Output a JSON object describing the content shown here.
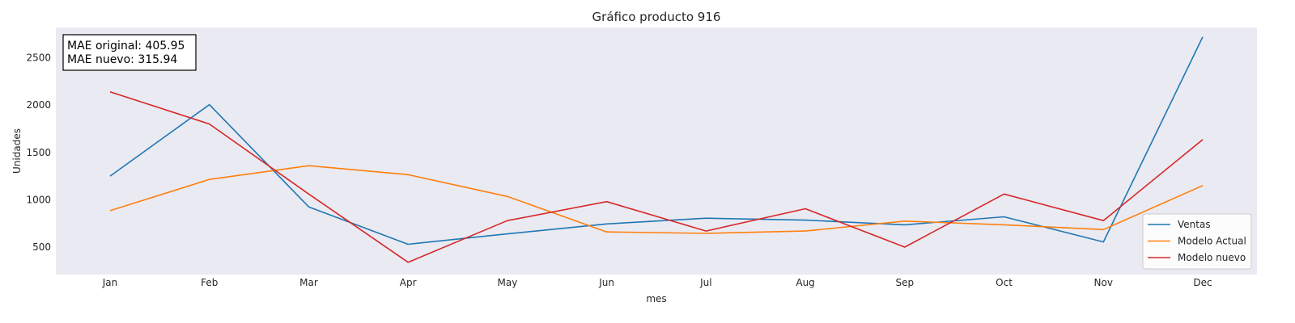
{
  "chart_data": {
    "type": "line",
    "title": "Gráfico producto 916",
    "xlabel": "mes",
    "ylabel": "Unidades",
    "categories": [
      "Jan",
      "Feb",
      "Mar",
      "Apr",
      "May",
      "Jun",
      "Jul",
      "Aug",
      "Sep",
      "Oct",
      "Nov",
      "Dec"
    ],
    "y_ticks": [
      500,
      1000,
      1500,
      2000,
      2500
    ],
    "ylim": [
      210,
      2820
    ],
    "grid": false,
    "legend_position": "lower-right",
    "series": [
      {
        "name": "Ventas",
        "color": "#1f77b4",
        "values": [
          1250,
          2005,
          925,
          530,
          640,
          745,
          805,
          785,
          735,
          820,
          555,
          2720
        ]
      },
      {
        "name": "Modelo Actual",
        "color": "#ff7f0e",
        "values": [
          885,
          1215,
          1360,
          1265,
          1035,
          660,
          645,
          670,
          775,
          735,
          685,
          1150
        ]
      },
      {
        "name": "Modelo nuevo",
        "color": "#d62728",
        "values": [
          2140,
          1800,
          1060,
          340,
          780,
          980,
          670,
          905,
          500,
          1060,
          780,
          1635
        ]
      }
    ],
    "annotation": {
      "lines": [
        "MAE original: 405.95",
        "MAE nuevo: 315.94"
      ]
    }
  },
  "style": {
    "plot_background": "#eaeaf2",
    "annotation_border": "#000000"
  }
}
